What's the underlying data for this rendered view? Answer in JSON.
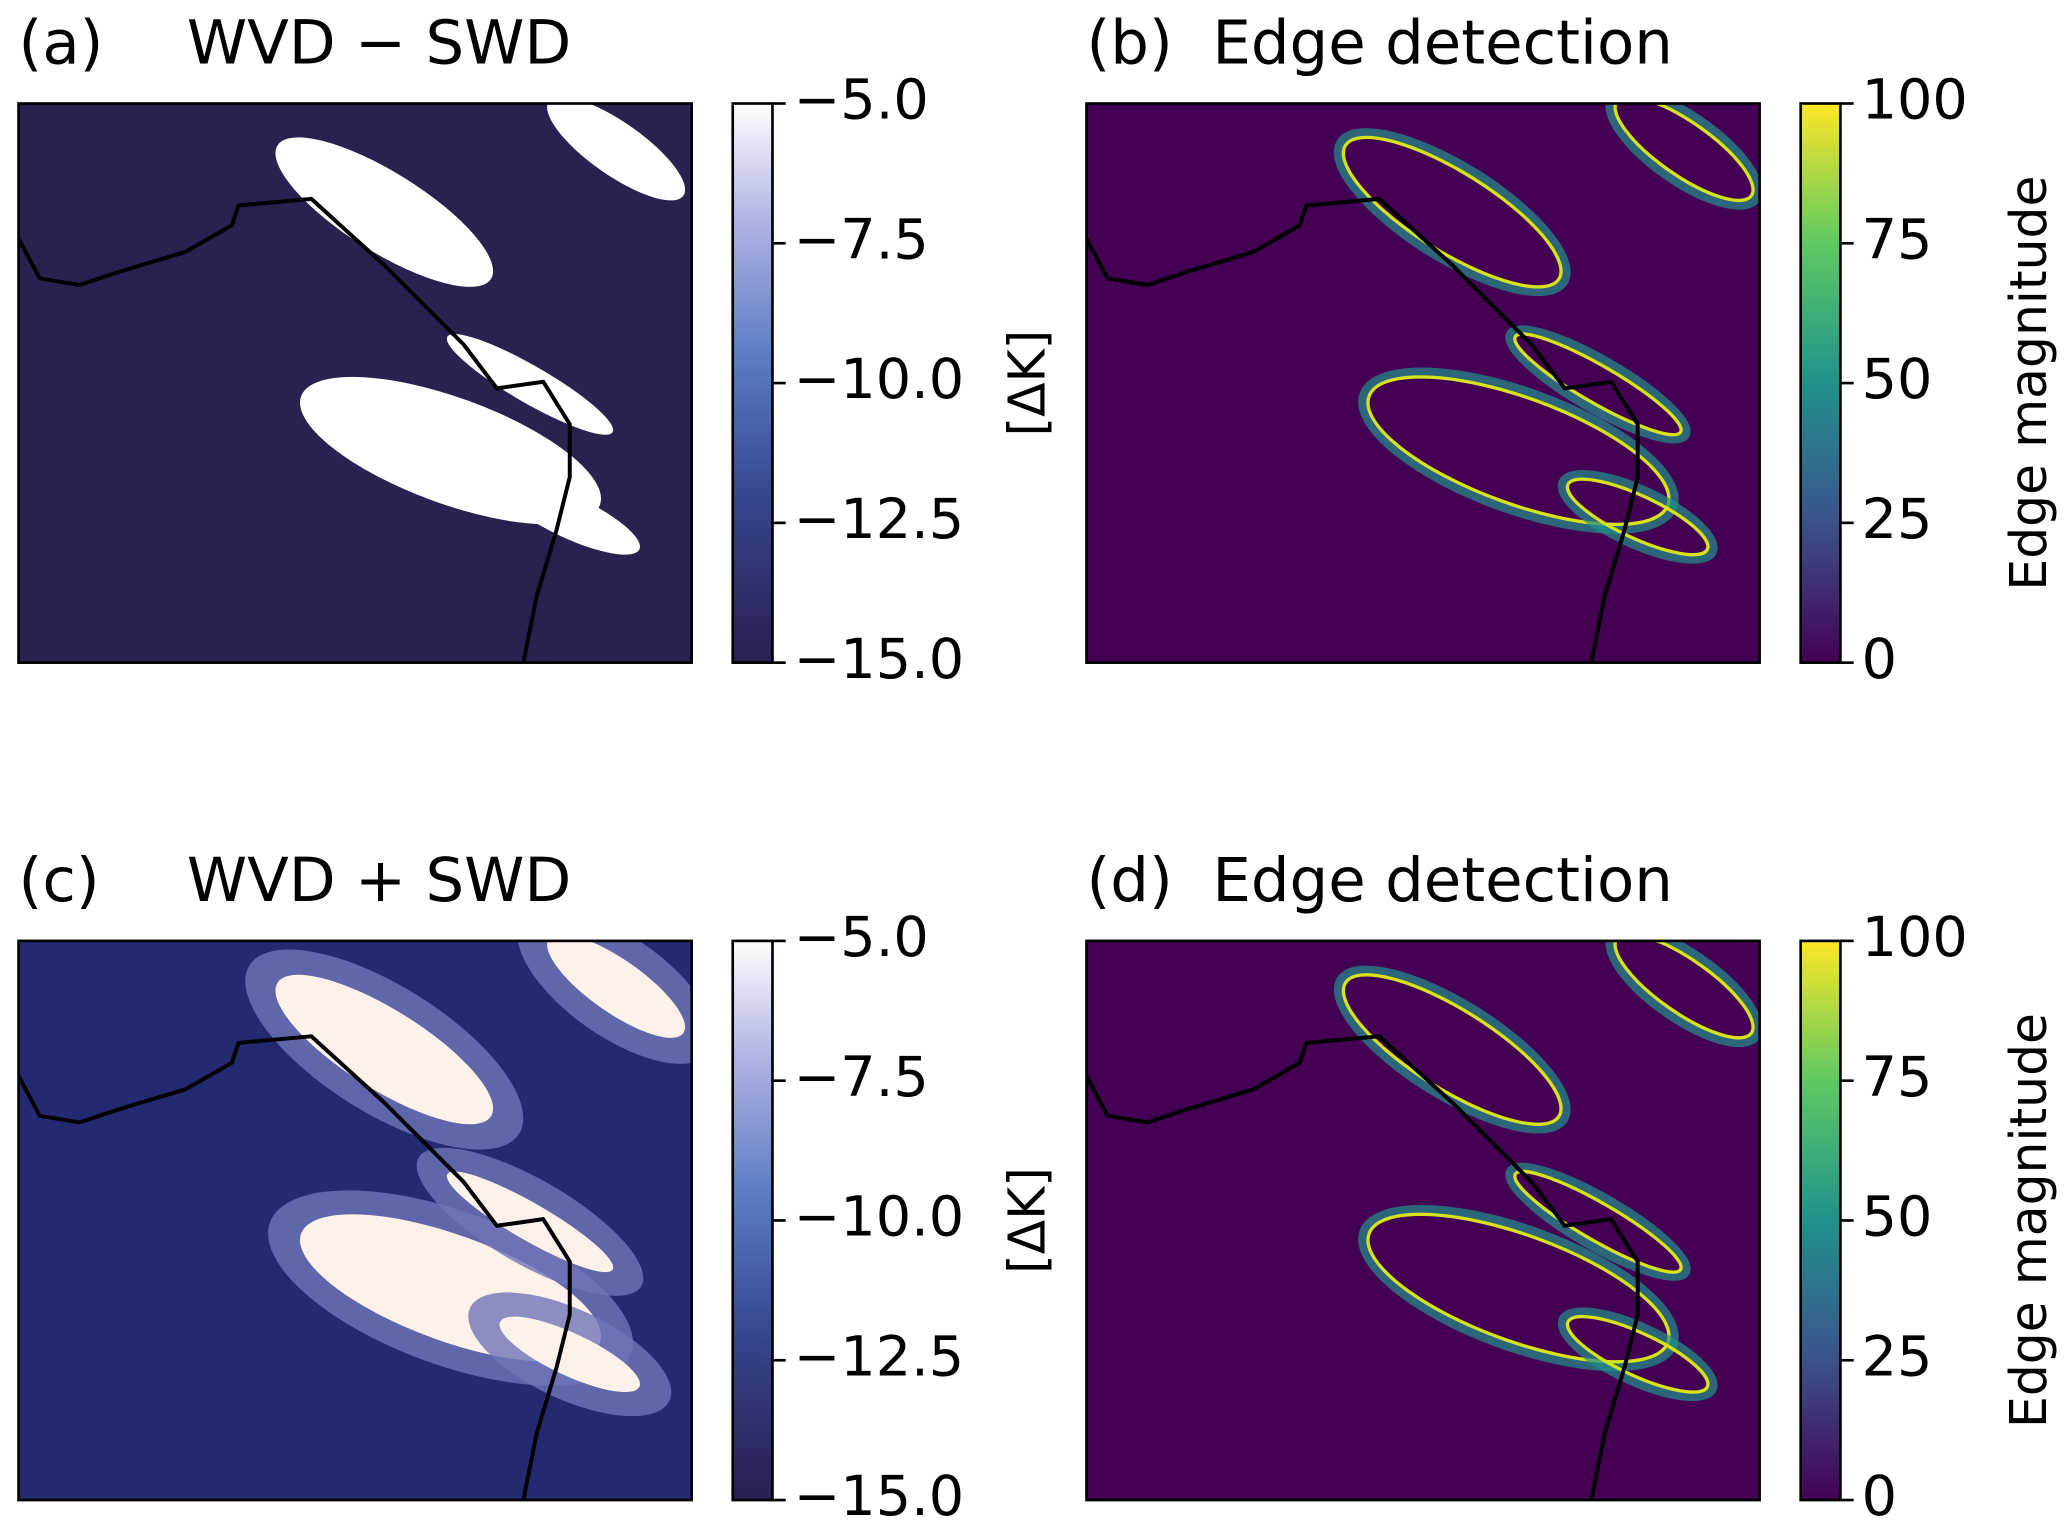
{
  "chart_data": [
    {
      "type": "image",
      "panel_label": "(a)",
      "title": "WVD − SWD",
      "colormap": "purples",
      "clim": [
        -15,
        -5
      ],
      "cticks": [
        {
          "value": -15,
          "label": "−15.0"
        },
        {
          "value": -12.5,
          "label": "−12.5"
        },
        {
          "value": -10,
          "label": "−10.0"
        },
        {
          "value": -7.5,
          "label": "−7.5"
        },
        {
          "value": -5,
          "label": "−5.0"
        }
      ],
      "colorbar_label": "[ΔK]"
    },
    {
      "type": "image",
      "panel_label": "(b)",
      "title": "Edge detection",
      "colormap": "viridis",
      "clim": [
        0,
        100
      ],
      "cticks": [
        0,
        25,
        50,
        75,
        100
      ],
      "colorbar_label": "Edge magnitude"
    },
    {
      "type": "image",
      "panel_label": "(c)",
      "title": "WVD + SWD",
      "colormap": "purples",
      "clim": [
        -15,
        -5
      ],
      "cticks": [
        {
          "value": -15,
          "label": "−15.0"
        },
        {
          "value": -12.5,
          "label": "−12.5"
        },
        {
          "value": -10,
          "label": "−10.0"
        },
        {
          "value": -7.5,
          "label": "−7.5"
        },
        {
          "value": -5,
          "label": "−5.0"
        }
      ],
      "colorbar_label": "[ΔK]"
    },
    {
      "type": "image",
      "panel_label": "(d)",
      "title": "Edge detection",
      "colormap": "viridis",
      "clim": [
        0,
        100
      ],
      "cticks": [
        0,
        25,
        50,
        75,
        100
      ],
      "colorbar_label": "Edge magnitude"
    }
  ]
}
